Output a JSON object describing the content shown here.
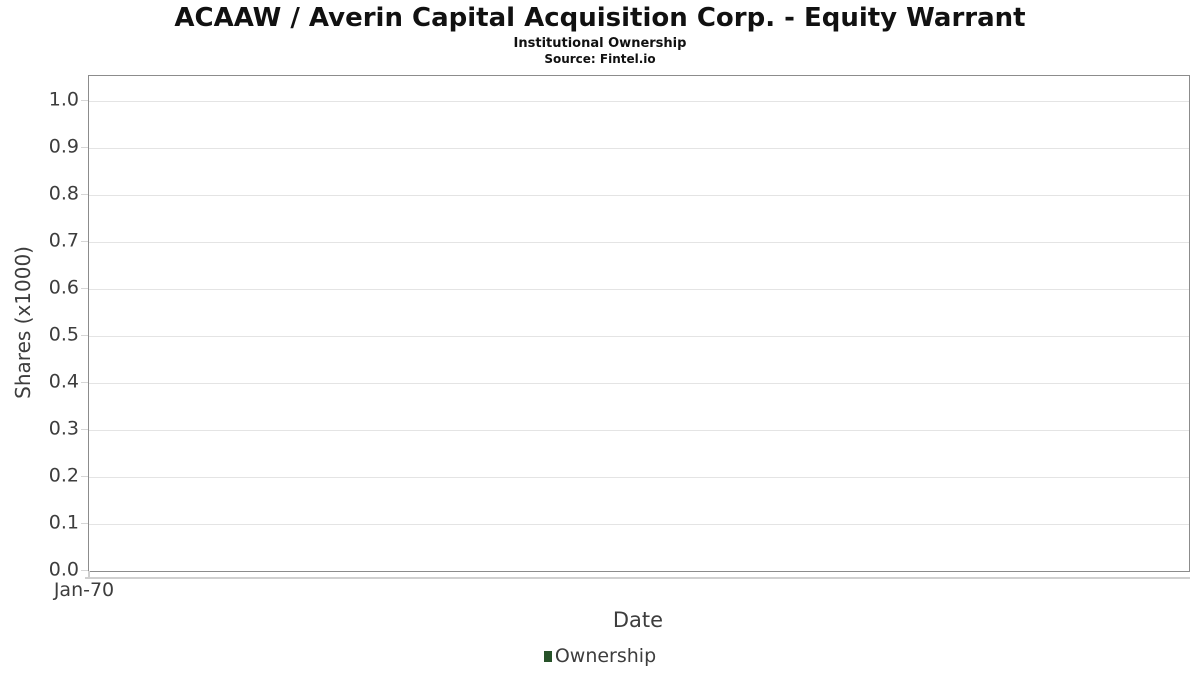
{
  "chart_data": {
    "type": "line",
    "title": "ACAAW / Averin Capital Acquisition Corp. - Equity Warrant",
    "subtitle": "Institutional Ownership",
    "source": "Source: Fintel.io",
    "xlabel": "Date",
    "ylabel": "Shares (x1000)",
    "ylim": [
      0.0,
      1.0
    ],
    "y_tick_labels": [
      "1.0",
      "0.9",
      "0.8",
      "0.7",
      "0.6",
      "0.5",
      "0.4",
      "0.3",
      "0.2",
      "0.1",
      "0.0"
    ],
    "x_tick_labels": [
      "Jan-70"
    ],
    "grid": true,
    "legend_position": "bottom",
    "series": [
      {
        "name": "Ownership",
        "color": "#275229",
        "x": [],
        "values": []
      }
    ]
  }
}
